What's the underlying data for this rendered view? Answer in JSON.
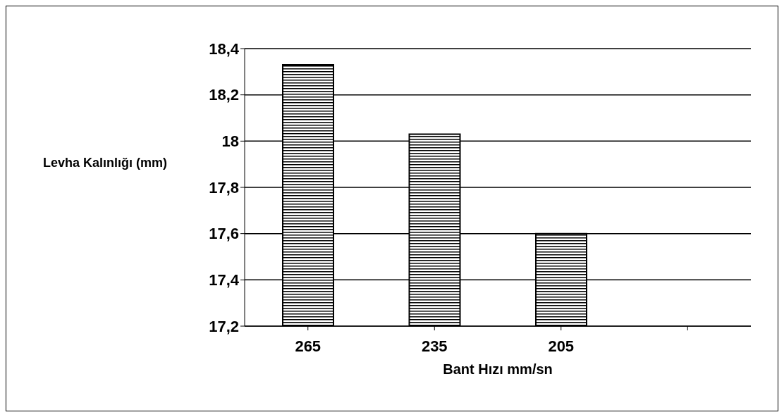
{
  "chart_data": {
    "type": "bar",
    "categories": [
      "265",
      "235",
      "205",
      null
    ],
    "values": [
      18.33,
      18.03,
      17.6,
      null
    ],
    "color": "#000000",
    "xlabel": "Bant Hızı mm/sn",
    "ylabel": "Levha Kalınlığı (mm)",
    "ylim": [
      17.2,
      18.4
    ],
    "yticks": [
      {
        "value": 17.2,
        "label": "17,2"
      },
      {
        "value": 17.4,
        "label": "17,4"
      },
      {
        "value": 17.6,
        "label": "17,6"
      },
      {
        "value": 17.8,
        "label": "17,8"
      },
      {
        "value": 18,
        "label": "18"
      },
      {
        "value": 18.2,
        "label": "18,2"
      },
      {
        "value": 18.4,
        "label": "18,4"
      }
    ],
    "grid": "y"
  }
}
